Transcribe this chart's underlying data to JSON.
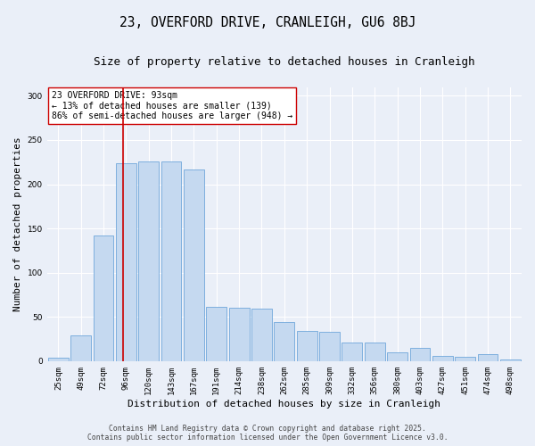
{
  "title_line1": "23, OVERFORD DRIVE, CRANLEIGH, GU6 8BJ",
  "title_line2": "Size of property relative to detached houses in Cranleigh",
  "xlabel": "Distribution of detached houses by size in Cranleigh",
  "ylabel": "Number of detached properties",
  "categories": [
    "25sqm",
    "49sqm",
    "72sqm",
    "96sqm",
    "120sqm",
    "143sqm",
    "167sqm",
    "191sqm",
    "214sqm",
    "238sqm",
    "262sqm",
    "285sqm",
    "309sqm",
    "332sqm",
    "356sqm",
    "380sqm",
    "403sqm",
    "427sqm",
    "451sqm",
    "474sqm",
    "498sqm"
  ],
  "bar_heights": [
    4,
    29,
    142,
    224,
    226,
    226,
    217,
    61,
    60,
    59,
    44,
    34,
    33,
    21,
    21,
    10,
    15,
    6,
    5,
    8,
    2
  ],
  "bar_color": "#c5d9f0",
  "bar_edge_color": "#5b9bd5",
  "background_color": "#eaeff8",
  "grid_color": "#ffffff",
  "vline_x": 2.85,
  "vline_color": "#cc0000",
  "annotation_text": "23 OVERFORD DRIVE: 93sqm\n← 13% of detached houses are smaller (139)\n86% of semi-detached houses are larger (948) →",
  "annotation_box_facecolor": "#ffffff",
  "annotation_box_edgecolor": "#cc0000",
  "footer_text": "Contains HM Land Registry data © Crown copyright and database right 2025.\nContains public sector information licensed under the Open Government Licence v3.0.",
  "ylim": [
    0,
    310
  ],
  "title_fontsize": 10.5,
  "subtitle_fontsize": 9,
  "annotation_fontsize": 7,
  "ylabel_fontsize": 8,
  "xlabel_fontsize": 8,
  "tick_fontsize": 6.5,
  "footer_fontsize": 5.8
}
